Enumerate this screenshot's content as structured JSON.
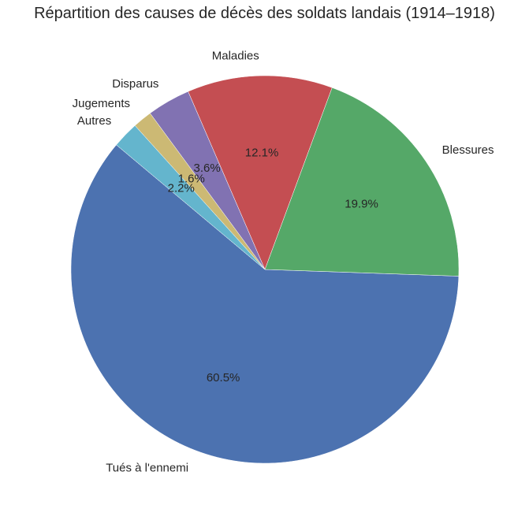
{
  "chart_data": {
    "type": "pie",
    "title": "Répartition des causes de décès des soldats landais (1914–1918)",
    "slices": [
      {
        "label": "Tués à l'ennemi",
        "value": 60.5,
        "pct_label": "60.5%",
        "color": "#4c72b0"
      },
      {
        "label": "Blessures",
        "value": 19.9,
        "pct_label": "19.9%",
        "color": "#55a868"
      },
      {
        "label": "Maladies",
        "value": 12.1,
        "pct_label": "12.1%",
        "color": "#c44e52"
      },
      {
        "label": "Disparus",
        "value": 3.6,
        "pct_label": "3.6%",
        "color": "#8172b2"
      },
      {
        "label": "Jugements",
        "value": 1.6,
        "pct_label": "1.6%",
        "color": "#ccb974"
      },
      {
        "label": "Autres",
        "value": 2.2,
        "pct_label": "2.2%",
        "color": "#64b5cd"
      }
    ],
    "start_angle_deg": 140,
    "direction": "counterclockwise",
    "legend": "none"
  }
}
